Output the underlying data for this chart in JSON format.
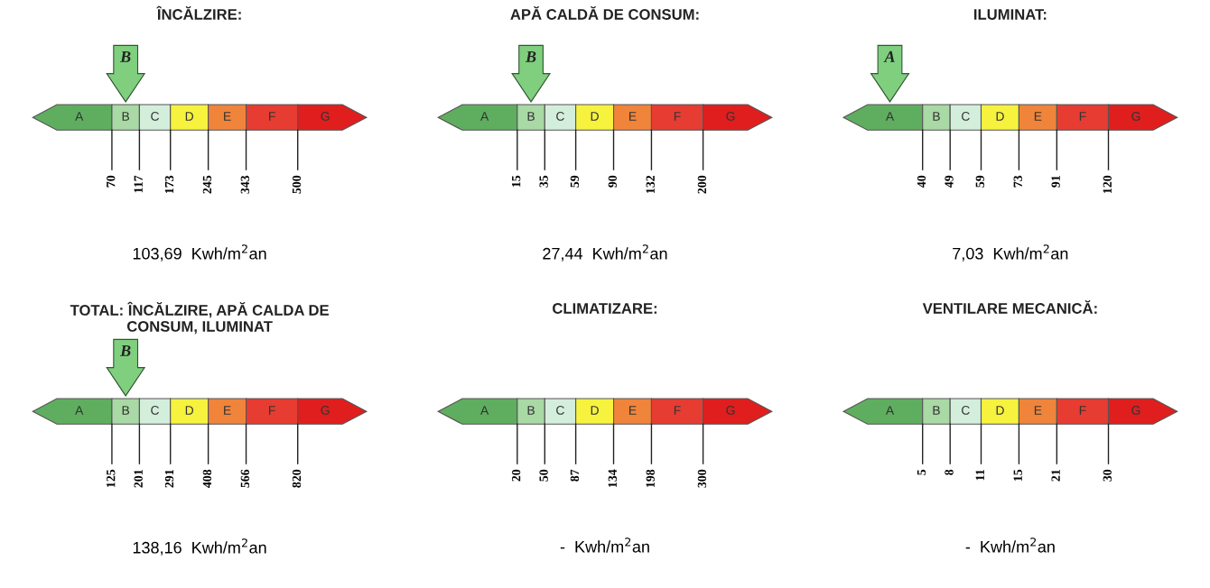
{
  "chart_data": [
    {
      "type": "other",
      "title": "ÎNCĂLZIRE:",
      "categories": [
        "A",
        "B",
        "C",
        "D",
        "E",
        "F",
        "G"
      ],
      "values": [
        70,
        117,
        173,
        245,
        343,
        500,
        null
      ],
      "data_labels": true,
      "colors": [
        "#5fae5f",
        "#a9d9a4",
        "#d4eedc",
        "#f6f23e",
        "#f0843a",
        "#e63c32",
        "#e01e1e"
      ],
      "needle": "B",
      "annotations": [
        "103,69  Kwh/m$^{2}$an"
      ]
    },
    {
      "type": "other",
      "title": "APĂ CALDĂ DE CONSUM:",
      "categories": [
        "A",
        "B",
        "C",
        "D",
        "E",
        "F",
        "G"
      ],
      "values": [
        15,
        35,
        59,
        90,
        132,
        200,
        null
      ],
      "data_labels": true,
      "colors": [
        "#5fae5f",
        "#a9d9a4",
        "#d4eedc",
        "#f6f23e",
        "#f0843a",
        "#e63c32",
        "#e01e1e"
      ],
      "needle": "B",
      "annotations": [
        "27,44  Kwh/m$^{2}$an"
      ]
    },
    {
      "type": "other",
      "title": "ILUMINAT:",
      "categories": [
        "A",
        "B",
        "C",
        "D",
        "E",
        "F",
        "G"
      ],
      "values": [
        40,
        49,
        59,
        73,
        91,
        120,
        null
      ],
      "data_labels": true,
      "colors": [
        "#5fae5f",
        "#a9d9a4",
        "#d4eedc",
        "#f6f23e",
        "#f0843a",
        "#e63c32",
        "#e01e1e"
      ],
      "needle": "A",
      "annotations": [
        "7,03  Kwh/m$^{2}$an"
      ]
    },
    {
      "type": "other",
      "title": "TOTAL: ÎNCĂLZIRE, APĂ CALDA DE\nCONSUM, ILUMINAT",
      "categories": [
        "A",
        "B",
        "C",
        "D",
        "E",
        "F",
        "G"
      ],
      "values": [
        125,
        201,
        291,
        408,
        566,
        820,
        null
      ],
      "data_labels": true,
      "colors": [
        "#5fae5f",
        "#a9d9a4",
        "#d4eedc",
        "#f6f23e",
        "#f0843a",
        "#e63c32",
        "#e01e1e"
      ],
      "needle": "B",
      "annotations": [
        "138,16  Kwh/m$^{2}$an"
      ]
    },
    {
      "type": "other",
      "title": "CLIMATIZARE:",
      "categories": [
        "A",
        "B",
        "C",
        "D",
        "E",
        "F",
        "G"
      ],
      "values": [
        20,
        50,
        87,
        134,
        198,
        300,
        null
      ],
      "data_labels": true,
      "colors": [
        "#5fae5f",
        "#a9d9a4",
        "#d4eedc",
        "#f6f23e",
        "#f0843a",
        "#e63c32",
        "#e01e1e"
      ],
      "annotations": [
        "-  Kwh/m$^{2}$an"
      ]
    },
    {
      "type": "other",
      "title": "VENTILARE MECANICĂ:",
      "categories": [
        "A",
        "B",
        "C",
        "D",
        "E",
        "F",
        "G"
      ],
      "values": [
        5,
        8,
        11,
        15,
        21,
        30,
        null
      ],
      "data_labels": true,
      "colors": [
        "#5fae5f",
        "#a9d9a4",
        "#d4eedc",
        "#f6f23e",
        "#f0843a",
        "#e63c32",
        "#e01e1e"
      ],
      "annotations": [
        "-  Kwh/m$^{2}$an"
      ]
    }
  ]
}
